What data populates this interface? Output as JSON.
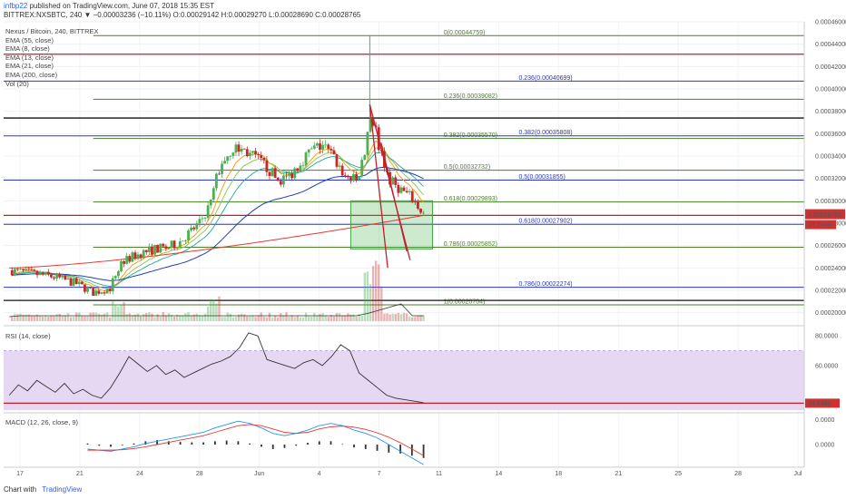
{
  "header": {
    "author": "infbp22",
    "published_text": "published on TradingView.com, June 07, 2018 15:35 EST",
    "ticker_line": "BITTREX:NXSBTC, 240  ▼ −0.00003236 (−10.11%)  O:0.00029142  H:0.00029270  L:0.00028690  C:0.00028765"
  },
  "legend": {
    "title": "Nexus / Bitcoin, 240, BITTREX",
    "items": [
      "EMA (55, close)",
      "EMA (8, close)",
      "EMA (13, close)",
      "EMA (21, close)",
      "EMA (200, close)",
      "Vol (20)"
    ]
  },
  "rsi_label": "RSI (14, close)",
  "macd_label": "MACD (12, 26, close, 9)",
  "footer": {
    "chart_with": "Chart with",
    "brand": "TradingView"
  },
  "colors": {
    "green_fib": "#4a7f2a",
    "blue_fib": "#2a36c9",
    "red_line": "#c21f2f",
    "black_line": "#111111",
    "candle_up": "#4caf50",
    "candle_down": "#c62828",
    "price_tag": "#d32f2f",
    "rsi_band": "#e6d8f2"
  },
  "chart_data": [
    {
      "type": "candlestick",
      "title": "Nexus / Bitcoin, 240, BITTREX",
      "symbol": "BITTREX:NXSBTC",
      "ylim": [
        0.00019,
        0.00046
      ],
      "price_ticks": [
        "0.00046000",
        "0.00044000",
        "0.00042000",
        "0.00040000",
        "0.00038000",
        "0.00036000",
        "0.00034000",
        "0.00032000",
        "0.00030000",
        "0.00028000",
        "0.00026000",
        "0.00024000",
        "0.00022000",
        "0.00020000"
      ],
      "x_tick_labels": [
        "17",
        "21",
        "24",
        "28",
        "Jun",
        "4",
        "7",
        "11",
        "14",
        "18",
        "21",
        "25",
        "28",
        "Jul"
      ],
      "current_price": "0.00028765",
      "countdown": "03:24:05",
      "price_path": [
        {
          "t": 0,
          "p": 0.000238
        },
        {
          "t": 4,
          "p": 0.000232
        },
        {
          "t": 6,
          "p": 0.000226
        },
        {
          "t": 7.5,
          "p": 0.000218
        },
        {
          "t": 9,
          "p": 0.000222
        },
        {
          "t": 10,
          "p": 0.000245
        },
        {
          "t": 11,
          "p": 0.00025
        },
        {
          "t": 12,
          "p": 0.000254
        },
        {
          "t": 13,
          "p": 0.000257
        },
        {
          "t": 14,
          "p": 0.000258
        },
        {
          "t": 15,
          "p": 0.000262
        },
        {
          "t": 15.5,
          "p": 0.000266
        },
        {
          "t": 16,
          "p": 0.000271
        },
        {
          "t": 17,
          "p": 0.00028
        },
        {
          "t": 18,
          "p": 0.000298
        },
        {
          "t": 18.5,
          "p": 0.00032
        },
        {
          "t": 19,
          "p": 0.000335
        },
        {
          "t": 20,
          "p": 0.000347
        },
        {
          "t": 21,
          "p": 0.000345
        },
        {
          "t": 22,
          "p": 0.000338
        },
        {
          "t": 23,
          "p": 0.00033
        },
        {
          "t": 24,
          "p": 0.000318
        },
        {
          "t": 25,
          "p": 0.000322
        },
        {
          "t": 26,
          "p": 0.000335
        },
        {
          "t": 27,
          "p": 0.000345
        },
        {
          "t": 28,
          "p": 0.00035
        },
        {
          "t": 29,
          "p": 0.000338
        },
        {
          "t": 30,
          "p": 0.000322
        },
        {
          "t": 31,
          "p": 0.000318
        },
        {
          "t": 31.7,
          "p": 0.000338
        },
        {
          "t": 32.2,
          "p": 0.00038
        },
        {
          "t": 32.7,
          "p": 0.000365
        },
        {
          "t": 33.2,
          "p": 0.00034
        },
        {
          "t": 34,
          "p": 0.000318
        },
        {
          "t": 35,
          "p": 0.00031
        },
        {
          "t": 36,
          "p": 0.000302
        },
        {
          "t": 37,
          "p": 0.000288
        }
      ],
      "spike_high": {
        "t": 32.2,
        "p": 0.0004476
      },
      "ema_values": {
        "ema200_start": 0.00024,
        "ema200_end": 0.000287,
        "ema55_start": 0.000225,
        "ema55_end": 0.000322
      },
      "fib_levels": [
        {
          "label": "0(0.00044759)",
          "value": 0.00044759,
          "color": "green"
        },
        {
          "label": "0.236(0.00039082)",
          "value": 0.00039082,
          "color": "green"
        },
        {
          "label": "0.382(0.00035570)",
          "value": 0.0003557,
          "color": "green"
        },
        {
          "label": "0.5(0.00032732)",
          "value": 0.00032732,
          "color": "green"
        },
        {
          "label": "0.618(0.00029893)",
          "value": 0.00029893,
          "color": "green"
        },
        {
          "label": "0.786(0.00025852)",
          "value": 0.00025852,
          "color": "green"
        },
        {
          "label": "1(0.00020704)",
          "value": 0.00020704,
          "color": "green"
        },
        {
          "label": "0.236(0.00040699)",
          "value": 0.00040699,
          "color": "blue"
        },
        {
          "label": "0.382(0.00035808)",
          "value": 0.00035808,
          "color": "blue"
        },
        {
          "label": "0.5(0.00031855)",
          "value": 0.00031855,
          "color": "blue"
        },
        {
          "label": "0.618(0.00027902)",
          "value": 0.00027902,
          "color": "blue"
        },
        {
          "label": "0.786(0.00022274)",
          "value": 0.00022274,
          "color": "blue"
        }
      ],
      "red_lines": [
        0.000431,
        0.000287
      ],
      "black_lines": [
        0.000374,
        0.000211
      ],
      "zone": {
        "p_low": 0.000257,
        "p_high": 0.0003,
        "t_from": 30.5,
        "t_to": 37.8
      },
      "trendlines": [
        {
          "t1": 32.2,
          "p1": 0.000386,
          "t2": 33.8,
          "p2": 0.00024
        },
        {
          "t1": 32.2,
          "p1": 0.000386,
          "t2": 35.8,
          "p2": 0.000247
        },
        {
          "t1": 33.2,
          "p1": 0.000352,
          "t2": 35.5,
          "p2": 0.000255
        }
      ]
    },
    {
      "type": "line",
      "title": "RSI (14, close)",
      "ylim": [
        30,
        85
      ],
      "y_ticks": [
        "80.0000",
        "60.0000"
      ],
      "band": [
        30,
        70
      ],
      "current": "34.6488",
      "values": [
        40,
        47,
        43,
        50,
        46,
        42,
        48,
        41,
        44,
        40,
        38,
        45,
        55,
        66,
        61,
        56,
        60,
        54,
        57,
        52,
        55,
        58,
        61,
        63,
        66,
        72,
        82,
        80,
        64,
        62,
        60,
        58,
        62,
        64,
        60,
        66,
        74,
        70,
        55,
        50,
        45,
        40,
        38,
        37,
        36,
        35
      ]
    },
    {
      "type": "bar",
      "title": "MACD (12, 26, close, 9)",
      "y_ticks": [
        "0.0000",
        "0.0000"
      ],
      "macd": [
        -2,
        -2.5,
        -3,
        -2,
        -1,
        0.5,
        1.5,
        2.5,
        3.5,
        4.5,
        5.5,
        7.5,
        9,
        10.5,
        9.5,
        7.5,
        5,
        4,
        5,
        6.5,
        8.5,
        9.5,
        8.5,
        6.5,
        5,
        3,
        0,
        -3,
        -6,
        -9
      ],
      "signal": [
        -2.5,
        -2.5,
        -2.5,
        -2.3,
        -1.8,
        -1,
        0,
        1,
        2,
        3,
        4,
        5.5,
        7,
        8.5,
        9,
        8.5,
        7,
        5.5,
        5,
        5.5,
        7,
        8,
        8.3,
        7.8,
        6.8,
        5.3,
        3.3,
        0.8,
        -2,
        -5
      ],
      "histogram": [
        0.5,
        -0.5,
        -1,
        -0.3,
        0.5,
        1.5,
        2,
        1.5,
        1.2,
        1,
        1,
        1.5,
        1.8,
        1.5,
        0.5,
        -1,
        -2,
        -1.5,
        -0.5,
        0.8,
        1.5,
        1.5,
        0.2,
        -1.3,
        -2,
        -2.8,
        -3.6,
        -4,
        -5,
        -6
      ]
    }
  ]
}
